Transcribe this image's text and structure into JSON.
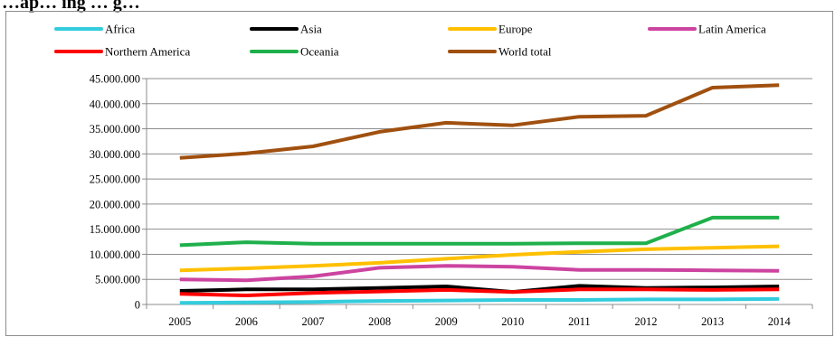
{
  "header": {
    "title": "…ap… ing … g…"
  },
  "chart_data": {
    "type": "line",
    "title": "",
    "xlabel": "",
    "ylabel": "",
    "categories": [
      "2005",
      "2006",
      "2007",
      "2008",
      "2009",
      "2010",
      "2011",
      "2012",
      "2013",
      "2014"
    ],
    "ylim": [
      0,
      45000000
    ],
    "y_ticks": [
      "0",
      "5.000.000",
      "10.000.000",
      "15.000.000",
      "20.000.000",
      "25.000.000",
      "30.000.000",
      "35.000.000",
      "40.000.000",
      "45.000.000"
    ],
    "grid": true,
    "legend_position": "top",
    "series": [
      {
        "name": "Africa",
        "color": "#33ccdd",
        "values": [
          300000,
          400000,
          500000,
          700000,
          800000,
          900000,
          900000,
          1000000,
          1000000,
          1100000
        ]
      },
      {
        "name": "Asia",
        "color": "#000000",
        "values": [
          2700000,
          3000000,
          3000000,
          3300000,
          3600000,
          2500000,
          3700000,
          3300000,
          3400000,
          3600000
        ]
      },
      {
        "name": "Europe",
        "color": "#ffc000",
        "values": [
          6800000,
          7200000,
          7700000,
          8300000,
          9100000,
          9900000,
          10500000,
          11000000,
          11300000,
          11600000
        ]
      },
      {
        "name": "Latin America",
        "color": "#cc44a0",
        "values": [
          5000000,
          4800000,
          5600000,
          7300000,
          7700000,
          7500000,
          6900000,
          6900000,
          6800000,
          6700000
        ]
      },
      {
        "name": "Northern America",
        "color": "#ff0000",
        "values": [
          2100000,
          1800000,
          2300000,
          2600000,
          2900000,
          2500000,
          3000000,
          3000000,
          2900000,
          3000000
        ]
      },
      {
        "name": "Oceania",
        "color": "#1fb04b",
        "values": [
          11800000,
          12400000,
          12100000,
          12100000,
          12100000,
          12100000,
          12200000,
          12200000,
          17300000,
          17300000
        ]
      },
      {
        "name": "World total",
        "color": "#a0500f",
        "values": [
          29200000,
          30100000,
          31500000,
          34400000,
          36200000,
          35700000,
          37400000,
          37600000,
          43200000,
          43700000
        ]
      }
    ]
  }
}
